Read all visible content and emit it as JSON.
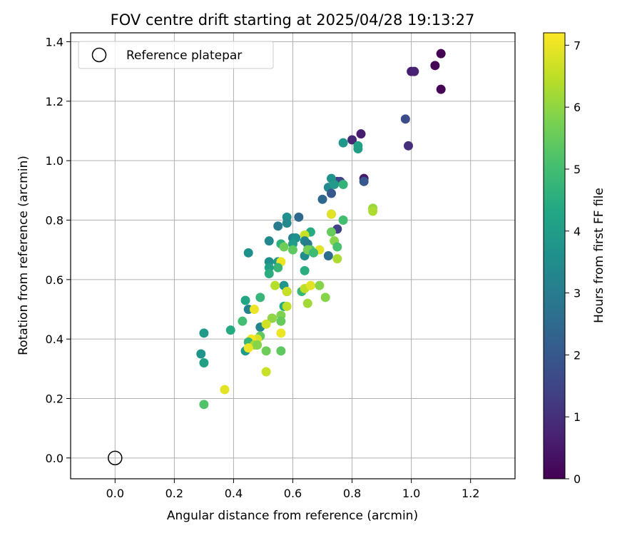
{
  "chart_data": {
    "type": "scatter",
    "title": "FOV centre drift starting at 2025/04/28 19:13:27",
    "xlabel": "Angular distance from reference (arcmin)",
    "ylabel": "Rotation from reference (arcmin)",
    "xlim": [
      -0.15,
      1.35
    ],
    "ylim": [
      -0.07,
      1.43
    ],
    "xticks": [
      "0.0",
      "0.2",
      "0.4",
      "0.6",
      "0.8",
      "1.0",
      "1.2"
    ],
    "yticks": [
      "0.0",
      "0.2",
      "0.4",
      "0.6",
      "0.8",
      "1.0",
      "1.2",
      "1.4"
    ],
    "grid": true,
    "legend": {
      "position": "top-left",
      "entries": [
        {
          "label": "Reference platepar",
          "marker": "open-circle"
        }
      ]
    },
    "reference_point": {
      "x": 0.0,
      "y": 0.0
    },
    "colorbar": {
      "label": "Hours from first FF file",
      "colormap": "viridis",
      "range": [
        0,
        7.2
      ],
      "ticks": [
        "0",
        "1",
        "2",
        "3",
        "4",
        "5",
        "6",
        "7"
      ]
    },
    "points": [
      {
        "x": 1.1,
        "y": 1.36,
        "c": 0.0
      },
      {
        "x": 1.08,
        "y": 1.32,
        "c": 0.1
      },
      {
        "x": 1.1,
        "y": 1.24,
        "c": 0.1
      },
      {
        "x": 1.0,
        "y": 1.3,
        "c": 0.6
      },
      {
        "x": 1.01,
        "y": 1.3,
        "c": 0.7
      },
      {
        "x": 0.98,
        "y": 1.14,
        "c": 1.7
      },
      {
        "x": 0.99,
        "y": 1.05,
        "c": 1.0
      },
      {
        "x": 0.83,
        "y": 1.09,
        "c": 0.6
      },
      {
        "x": 0.8,
        "y": 1.07,
        "c": 0.8
      },
      {
        "x": 0.84,
        "y": 0.94,
        "c": 0.5
      },
      {
        "x": 0.84,
        "y": 0.93,
        "c": 2.0
      },
      {
        "x": 0.77,
        "y": 1.06,
        "c": 3.8
      },
      {
        "x": 0.82,
        "y": 1.04,
        "c": 4.0
      },
      {
        "x": 0.82,
        "y": 1.05,
        "c": 4.1
      },
      {
        "x": 0.75,
        "y": 0.93,
        "c": 1.2
      },
      {
        "x": 0.76,
        "y": 0.93,
        "c": 1.5
      },
      {
        "x": 0.73,
        "y": 0.94,
        "c": 3.7
      },
      {
        "x": 0.72,
        "y": 0.91,
        "c": 3.4
      },
      {
        "x": 0.74,
        "y": 0.92,
        "c": 3.9
      },
      {
        "x": 0.77,
        "y": 0.92,
        "c": 4.7
      },
      {
        "x": 0.73,
        "y": 0.89,
        "c": 2.0
      },
      {
        "x": 0.7,
        "y": 0.87,
        "c": 2.4
      },
      {
        "x": 0.73,
        "y": 0.82,
        "c": 3.7
      },
      {
        "x": 0.73,
        "y": 0.82,
        "c": 6.9
      },
      {
        "x": 0.77,
        "y": 0.8,
        "c": 5.0
      },
      {
        "x": 0.75,
        "y": 0.77,
        "c": 1.4
      },
      {
        "x": 0.73,
        "y": 0.76,
        "c": 5.5
      },
      {
        "x": 0.74,
        "y": 0.73,
        "c": 5.9
      },
      {
        "x": 0.75,
        "y": 0.71,
        "c": 5.1
      },
      {
        "x": 0.75,
        "y": 0.67,
        "c": 6.3
      },
      {
        "x": 0.72,
        "y": 0.68,
        "c": 2.6
      },
      {
        "x": 0.69,
        "y": 0.7,
        "c": 6.9
      },
      {
        "x": 0.66,
        "y": 0.76,
        "c": 4.4
      },
      {
        "x": 0.64,
        "y": 0.75,
        "c": 6.6
      },
      {
        "x": 0.62,
        "y": 0.81,
        "c": 2.5
      },
      {
        "x": 0.58,
        "y": 0.81,
        "c": 3.6
      },
      {
        "x": 0.58,
        "y": 0.79,
        "c": 3.4
      },
      {
        "x": 0.55,
        "y": 0.78,
        "c": 3.0
      },
      {
        "x": 0.6,
        "y": 0.74,
        "c": 3.2
      },
      {
        "x": 0.61,
        "y": 0.74,
        "c": 3.6
      },
      {
        "x": 0.6,
        "y": 0.72,
        "c": 4.0
      },
      {
        "x": 0.64,
        "y": 0.73,
        "c": 3.3
      },
      {
        "x": 0.65,
        "y": 0.72,
        "c": 3.0
      },
      {
        "x": 0.66,
        "y": 0.7,
        "c": 5.3
      },
      {
        "x": 0.64,
        "y": 0.68,
        "c": 3.5
      },
      {
        "x": 0.65,
        "y": 0.7,
        "c": 5.7
      },
      {
        "x": 0.67,
        "y": 0.69,
        "c": 4.9
      },
      {
        "x": 0.56,
        "y": 0.72,
        "c": 4.6
      },
      {
        "x": 0.57,
        "y": 0.71,
        "c": 5.6
      },
      {
        "x": 0.6,
        "y": 0.7,
        "c": 5.4
      },
      {
        "x": 0.52,
        "y": 0.73,
        "c": 3.4
      },
      {
        "x": 0.45,
        "y": 0.69,
        "c": 3.6
      },
      {
        "x": 0.55,
        "y": 0.66,
        "c": 3.9
      },
      {
        "x": 0.56,
        "y": 0.66,
        "c": 7.0
      },
      {
        "x": 0.55,
        "y": 0.64,
        "c": 4.8
      },
      {
        "x": 0.52,
        "y": 0.66,
        "c": 3.6
      },
      {
        "x": 0.52,
        "y": 0.64,
        "c": 4.1
      },
      {
        "x": 0.52,
        "y": 0.62,
        "c": 4.5
      },
      {
        "x": 0.64,
        "y": 0.63,
        "c": 4.5
      },
      {
        "x": 0.57,
        "y": 0.58,
        "c": 3.8
      },
      {
        "x": 0.58,
        "y": 0.56,
        "c": 2.2
      },
      {
        "x": 0.58,
        "y": 0.56,
        "c": 6.6
      },
      {
        "x": 0.54,
        "y": 0.58,
        "c": 6.4
      },
      {
        "x": 0.63,
        "y": 0.56,
        "c": 4.8
      },
      {
        "x": 0.64,
        "y": 0.57,
        "c": 6.5
      },
      {
        "x": 0.66,
        "y": 0.58,
        "c": 6.9
      },
      {
        "x": 0.69,
        "y": 0.58,
        "c": 5.9
      },
      {
        "x": 0.71,
        "y": 0.54,
        "c": 5.9
      },
      {
        "x": 0.65,
        "y": 0.52,
        "c": 6.2
      },
      {
        "x": 0.57,
        "y": 0.51,
        "c": 4.4
      },
      {
        "x": 0.58,
        "y": 0.51,
        "c": 6.5
      },
      {
        "x": 0.49,
        "y": 0.54,
        "c": 4.8
      },
      {
        "x": 0.44,
        "y": 0.53,
        "c": 4.3
      },
      {
        "x": 0.45,
        "y": 0.5,
        "c": 3.2
      },
      {
        "x": 0.47,
        "y": 0.5,
        "c": 7.0
      },
      {
        "x": 0.53,
        "y": 0.47,
        "c": 3.7
      },
      {
        "x": 0.53,
        "y": 0.47,
        "c": 6.0
      },
      {
        "x": 0.56,
        "y": 0.48,
        "c": 5.8
      },
      {
        "x": 0.56,
        "y": 0.46,
        "c": 5.5
      },
      {
        "x": 0.49,
        "y": 0.44,
        "c": 3.3
      },
      {
        "x": 0.51,
        "y": 0.45,
        "c": 6.7
      },
      {
        "x": 0.56,
        "y": 0.42,
        "c": 7.0
      },
      {
        "x": 0.49,
        "y": 0.41,
        "c": 5.4
      },
      {
        "x": 0.48,
        "y": 0.4,
        "c": 6.8
      },
      {
        "x": 0.46,
        "y": 0.4,
        "c": 7.1
      },
      {
        "x": 0.45,
        "y": 0.39,
        "c": 4.8
      },
      {
        "x": 0.47,
        "y": 0.38,
        "c": 6.3
      },
      {
        "x": 0.48,
        "y": 0.38,
        "c": 5.9
      },
      {
        "x": 0.44,
        "y": 0.36,
        "c": 3.9
      },
      {
        "x": 0.45,
        "y": 0.37,
        "c": 7.0
      },
      {
        "x": 0.51,
        "y": 0.36,
        "c": 5.6
      },
      {
        "x": 0.56,
        "y": 0.36,
        "c": 5.4
      },
      {
        "x": 0.43,
        "y": 0.46,
        "c": 5.0
      },
      {
        "x": 0.39,
        "y": 0.43,
        "c": 4.4
      },
      {
        "x": 0.3,
        "y": 0.42,
        "c": 3.9
      },
      {
        "x": 0.29,
        "y": 0.35,
        "c": 3.7
      },
      {
        "x": 0.3,
        "y": 0.32,
        "c": 4.1
      },
      {
        "x": 0.51,
        "y": 0.29,
        "c": 6.6
      },
      {
        "x": 0.37,
        "y": 0.23,
        "c": 6.9
      },
      {
        "x": 0.3,
        "y": 0.18,
        "c": 5.2
      },
      {
        "x": 0.87,
        "y": 0.84,
        "c": 6.1
      },
      {
        "x": 0.87,
        "y": 0.83,
        "c": 6.3
      }
    ]
  }
}
